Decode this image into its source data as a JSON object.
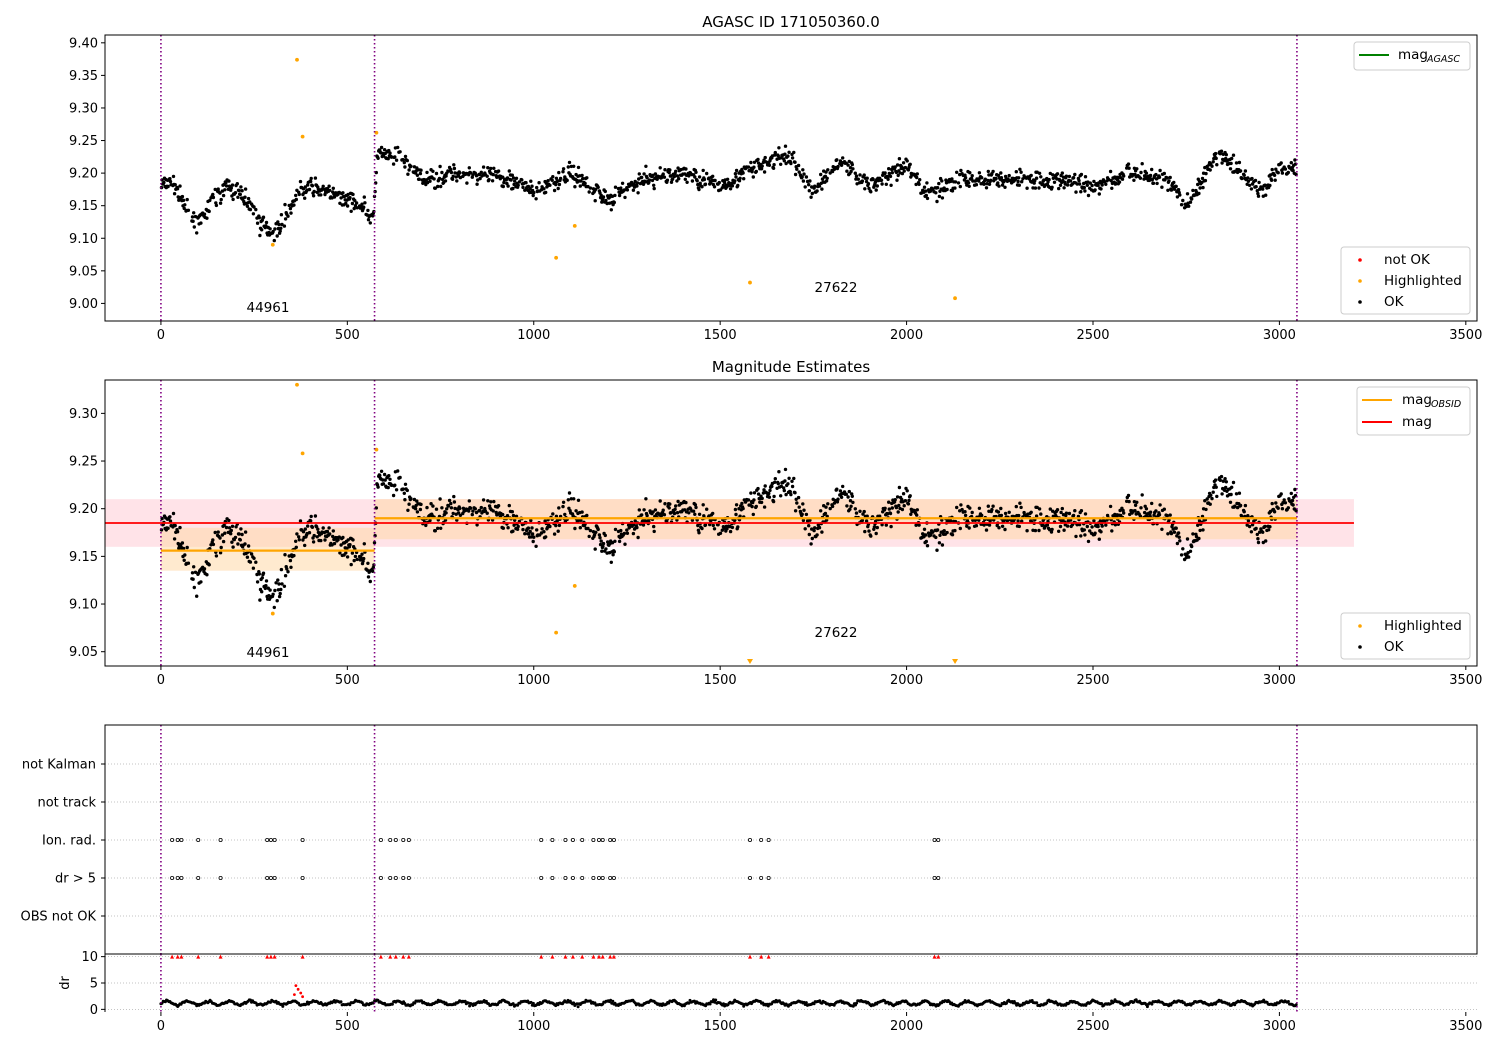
{
  "figure": {
    "obs_boundaries": [
      0,
      573,
      3047
    ],
    "chart_data": [
      {
        "type": "scatter",
        "title": "AGASC ID 171050360.0",
        "xlim": [
          -150,
          3530
        ],
        "ylim": [
          8.973,
          9.412
        ],
        "x_ticks": [
          0,
          500,
          1000,
          1500,
          2000,
          2500,
          3000,
          3500
        ],
        "y_ticks": [
          9.0,
          9.05,
          9.1,
          9.15,
          9.2,
          9.25,
          9.3,
          9.35,
          9.4
        ],
        "y_tick_labels": [
          "9.00",
          "9.05",
          "9.10",
          "9.15",
          "9.20",
          "9.25",
          "9.30",
          "9.35",
          "9.40"
        ],
        "grid": false,
        "legend_lines": [
          {
            "label": "mag",
            "subscript": "AGASC",
            "color": "#008000",
            "placement": "top-right"
          }
        ],
        "legend_markers": [
          {
            "label": "not OK",
            "color": "#ff0000"
          },
          {
            "label": "Highlighted",
            "color": "#ffa500"
          },
          {
            "label": "OK",
            "color": "#000000"
          }
        ],
        "annotations": [
          {
            "text": "44961",
            "x": 285,
            "y": 8.99
          },
          {
            "text": "27622",
            "x": 1810,
            "y": 9.021
          }
        ],
        "highlighted_points": [
          {
            "x": 365,
            "y": 9.374
          },
          {
            "x": 380,
            "y": 9.256
          },
          {
            "x": 300,
            "y": 9.09
          },
          {
            "x": 578,
            "y": 9.262
          },
          {
            "x": 1060,
            "y": 9.07
          },
          {
            "x": 1110,
            "y": 9.119
          },
          {
            "x": 1580,
            "y": 9.032
          },
          {
            "x": 2130,
            "y": 9.008
          }
        ],
        "ok_trend": [
          {
            "x": 0,
            "y": 9.18
          },
          {
            "x": 30,
            "y": 9.19
          },
          {
            "x": 60,
            "y": 9.15
          },
          {
            "x": 100,
            "y": 9.12
          },
          {
            "x": 140,
            "y": 9.16
          },
          {
            "x": 180,
            "y": 9.18
          },
          {
            "x": 230,
            "y": 9.16
          },
          {
            "x": 270,
            "y": 9.12
          },
          {
            "x": 310,
            "y": 9.11
          },
          {
            "x": 340,
            "y": 9.14
          },
          {
            "x": 370,
            "y": 9.17
          },
          {
            "x": 400,
            "y": 9.18
          },
          {
            "x": 450,
            "y": 9.17
          },
          {
            "x": 500,
            "y": 9.16
          },
          {
            "x": 540,
            "y": 9.15
          },
          {
            "x": 570,
            "y": 9.13
          },
          {
            "x": 580,
            "y": 9.23
          },
          {
            "x": 650,
            "y": 9.22
          },
          {
            "x": 700,
            "y": 9.19
          },
          {
            "x": 800,
            "y": 9.2
          },
          {
            "x": 950,
            "y": 9.19
          },
          {
            "x": 1000,
            "y": 9.17
          },
          {
            "x": 1100,
            "y": 9.2
          },
          {
            "x": 1200,
            "y": 9.16
          },
          {
            "x": 1300,
            "y": 9.19
          },
          {
            "x": 1400,
            "y": 9.2
          },
          {
            "x": 1500,
            "y": 9.18
          },
          {
            "x": 1600,
            "y": 9.21
          },
          {
            "x": 1680,
            "y": 9.23
          },
          {
            "x": 1750,
            "y": 9.17
          },
          {
            "x": 1820,
            "y": 9.22
          },
          {
            "x": 1900,
            "y": 9.18
          },
          {
            "x": 2000,
            "y": 9.21
          },
          {
            "x": 2050,
            "y": 9.17
          },
          {
            "x": 2150,
            "y": 9.19
          },
          {
            "x": 2300,
            "y": 9.19
          },
          {
            "x": 2400,
            "y": 9.19
          },
          {
            "x": 2500,
            "y": 9.18
          },
          {
            "x": 2600,
            "y": 9.2
          },
          {
            "x": 2700,
            "y": 9.19
          },
          {
            "x": 2750,
            "y": 9.15
          },
          {
            "x": 2840,
            "y": 9.23
          },
          {
            "x": 2900,
            "y": 9.2
          },
          {
            "x": 2950,
            "y": 9.17
          },
          {
            "x": 3000,
            "y": 9.21
          },
          {
            "x": 3045,
            "y": 9.21
          }
        ]
      },
      {
        "type": "scatter",
        "title": "Magnitude Estimates",
        "xlim": [
          -150,
          3530
        ],
        "ylim": [
          9.035,
          9.335
        ],
        "x_ticks": [
          0,
          500,
          1000,
          1500,
          2000,
          2500,
          3000,
          3500
        ],
        "y_ticks": [
          9.05,
          9.1,
          9.15,
          9.2,
          9.25,
          9.3
        ],
        "y_tick_labels": [
          "9.05",
          "9.10",
          "9.15",
          "9.20",
          "9.25",
          "9.30"
        ],
        "grid": false,
        "legend_lines": [
          {
            "label": "mag",
            "subscript": "OBSID",
            "color": "#ffa500",
            "placement": "top-right"
          },
          {
            "label": "mag",
            "subscript": "",
            "color": "#ff0000",
            "placement": "top-right"
          }
        ],
        "legend_markers": [
          {
            "label": "Highlighted",
            "color": "#ffa500"
          },
          {
            "label": "OK",
            "color": "#000000"
          }
        ],
        "annotations": [
          {
            "text": "44961",
            "x": 285,
            "y": 9.045
          },
          {
            "text": "27622",
            "x": 1810,
            "y": 9.066
          }
        ],
        "mag": {
          "value": 9.185,
          "band": [
            9.16,
            9.21
          ],
          "x_range": [
            -150,
            3200
          ]
        },
        "mag_obsid": [
          {
            "x_range": [
              0,
              573
            ],
            "value": 9.156,
            "band": [
              9.135,
              9.18
            ]
          },
          {
            "x_range": [
              573,
              3047
            ],
            "value": 9.19,
            "band": [
              9.168,
              9.21
            ]
          }
        ],
        "highlighted_points": [
          {
            "x": 365,
            "y": 9.33
          },
          {
            "x": 380,
            "y": 9.258
          },
          {
            "x": 300,
            "y": 9.09
          },
          {
            "x": 578,
            "y": 9.262
          },
          {
            "x": 1060,
            "y": 9.07
          },
          {
            "x": 1110,
            "y": 9.119
          }
        ],
        "out_of_range_markers": [
          {
            "x": 1580,
            "direction": "down"
          },
          {
            "x": 2130,
            "direction": "down"
          }
        ]
      },
      {
        "type": "scatter",
        "xlim": [
          -150,
          3530
        ],
        "category_labels": [
          "not Kalman",
          "not track",
          "Ion. rad.",
          "dr > 5",
          "OBS not OK"
        ],
        "grid": "horizontal dotted",
        "flag_x": [
          30,
          45,
          55,
          100,
          160,
          285,
          295,
          305,
          380,
          590,
          615,
          630,
          650,
          665,
          1020,
          1050,
          1085,
          1105,
          1130,
          1160,
          1175,
          1185,
          1205,
          1215,
          1580,
          1610,
          1630,
          2075,
          2085
        ],
        "flagged_rows": [
          "Ion. rad.",
          "dr > 5"
        ]
      },
      {
        "type": "scatter",
        "xlim": [
          -150,
          3530
        ],
        "ylim": [
          -0.5,
          10.5
        ],
        "ylabel": "dr",
        "y_ticks": [
          0,
          5,
          10
        ],
        "x_ticks": [
          0,
          500,
          1000,
          1500,
          2000,
          2500,
          3000,
          3500
        ],
        "grid": "horizontal dotted",
        "clipped_points_y": 10,
        "clipped_points_x": [
          30,
          45,
          55,
          100,
          160,
          285,
          295,
          305,
          380,
          590,
          615,
          630,
          650,
          665,
          1020,
          1050,
          1085,
          1105,
          1130,
          1160,
          1175,
          1185,
          1205,
          1215,
          1580,
          1610,
          1630,
          2075,
          2085
        ],
        "red_points": [
          {
            "x": 362,
            "y": 4.5
          },
          {
            "x": 368,
            "y": 3.8
          },
          {
            "x": 375,
            "y": 3.1
          },
          {
            "x": 358,
            "y": 2.8
          },
          {
            "x": 380,
            "y": 2.4
          }
        ],
        "dr_typical": 1.2
      }
    ]
  }
}
